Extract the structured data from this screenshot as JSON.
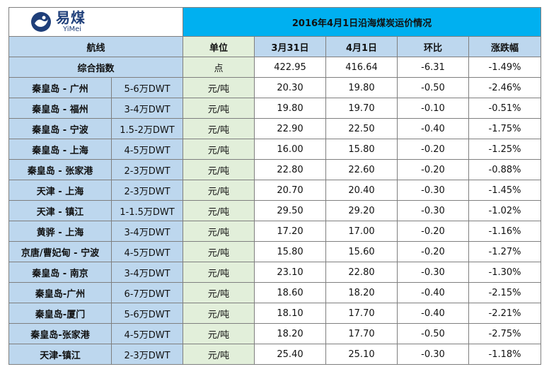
{
  "logo": {
    "cn": "易煤",
    "en": "YiMei"
  },
  "title": "2016年4月1日沿海煤炭运价情况",
  "headers": {
    "route": "航线",
    "unit": "单位",
    "prev": "3月31日",
    "curr": "4月1日",
    "change": "环比",
    "pct": "涨跌幅"
  },
  "index": {
    "label": "综合指数",
    "unit": "点",
    "prev": "422.95",
    "curr": "416.64",
    "change": "-6.31",
    "pct": "-1.49%"
  },
  "rows": [
    {
      "route": "秦皇岛 - 广州",
      "ship": "5-6万DWT",
      "unit": "元/吨",
      "prev": "20.30",
      "curr": "19.80",
      "change": "-0.50",
      "pct": "-2.46%"
    },
    {
      "route": "秦皇岛 - 福州",
      "ship": "3-4万DWT",
      "unit": "元/吨",
      "prev": "19.80",
      "curr": "19.70",
      "change": "-0.10",
      "pct": "-0.51%"
    },
    {
      "route": "秦皇岛 - 宁波",
      "ship": "1.5-2万DWT",
      "unit": "元/吨",
      "prev": "22.90",
      "curr": "22.50",
      "change": "-0.40",
      "pct": "-1.75%"
    },
    {
      "route": "秦皇岛 - 上海",
      "ship": "4-5万DWT",
      "unit": "元/吨",
      "prev": "16.00",
      "curr": "15.80",
      "change": "-0.20",
      "pct": "-1.25%"
    },
    {
      "route": "秦皇岛 - 张家港",
      "ship": "2-3万DWT",
      "unit": "元/吨",
      "prev": "22.80",
      "curr": "22.60",
      "change": "-0.20",
      "pct": "-0.88%"
    },
    {
      "route": "天津 - 上海",
      "ship": "2-3万DWT",
      "unit": "元/吨",
      "prev": "20.70",
      "curr": "20.40",
      "change": "-0.30",
      "pct": "-1.45%"
    },
    {
      "route": "天津 - 镇江",
      "ship": "1-1.5万DWT",
      "unit": "元/吨",
      "prev": "29.50",
      "curr": "29.20",
      "change": "-0.30",
      "pct": "-1.02%"
    },
    {
      "route": "黄骅 - 上海",
      "ship": "3-4万DWT",
      "unit": "元/吨",
      "prev": "17.20",
      "curr": "17.00",
      "change": "-0.20",
      "pct": "-1.16%"
    },
    {
      "route": "京唐/曹妃甸 - 宁波",
      "ship": "4-5万DWT",
      "unit": "元/吨",
      "prev": "15.80",
      "curr": "15.60",
      "change": "-0.20",
      "pct": "-1.27%"
    },
    {
      "route": "秦皇岛 - 南京",
      "ship": "3-4万DWT",
      "unit": "元/吨",
      "prev": "23.10",
      "curr": "22.80",
      "change": "-0.30",
      "pct": "-1.30%"
    },
    {
      "route": "秦皇岛-广州",
      "ship": "6-7万DWT",
      "unit": "元/吨",
      "prev": "18.60",
      "curr": "18.20",
      "change": "-0.40",
      "pct": "-2.15%"
    },
    {
      "route": "秦皇岛-厦门",
      "ship": "5-6万DWT",
      "unit": "元/吨",
      "prev": "18.10",
      "curr": "17.70",
      "change": "-0.40",
      "pct": "-2.21%"
    },
    {
      "route": "秦皇岛-张家港",
      "ship": "4-5万DWT",
      "unit": "元/吨",
      "prev": "18.20",
      "curr": "17.70",
      "change": "-0.50",
      "pct": "-2.75%"
    },
    {
      "route": "天津-镇江",
      "ship": "2-3万DWT",
      "unit": "元/吨",
      "prev": "25.40",
      "curr": "25.10",
      "change": "-0.30",
      "pct": "-1.18%"
    }
  ]
}
